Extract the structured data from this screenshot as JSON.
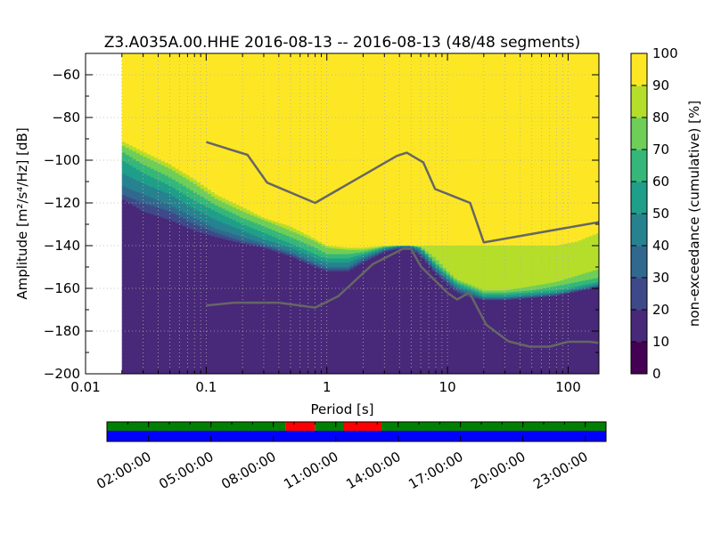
{
  "chart_data": {
    "type": "heatmap",
    "title": "Z3.A035A.00.HHE   2016-08-13 -- 2016-08-13  (48/48 segments)",
    "xlabel": "Period [s]",
    "ylabel": "Amplitude [m²/s⁴/Hz] [dB]",
    "x_scale": "log",
    "xlim": [
      0.01,
      180
    ],
    "ylim": [
      -200,
      -50
    ],
    "xticks": [
      {
        "value": 0.01,
        "label": "0.01"
      },
      {
        "value": 0.1,
        "label": "0.1"
      },
      {
        "value": 1,
        "label": "1"
      },
      {
        "value": 10,
        "label": "10"
      },
      {
        "value": 100,
        "label": "100"
      }
    ],
    "yticks": [
      -60,
      -80,
      -100,
      -120,
      -140,
      -160,
      -180,
      -200
    ],
    "grid": true,
    "data_x_start": 0.02,
    "colorbar": {
      "label": "non-exceedance (cumulative) [%]",
      "ticks": [
        0,
        10,
        20,
        30,
        40,
        50,
        60,
        70,
        80,
        90,
        100
      ],
      "colormap": "viridis"
    },
    "psd_boundaries": {
      "columns": [
        {
          "x": 0.02,
          "b": [
            -119,
            -118,
            -116,
            -112,
            -106,
            -100,
            -96,
            -93,
            -91
          ]
        },
        {
          "x": 0.03,
          "b": [
            -127,
            -124,
            -120,
            -116,
            -111,
            -106,
            -102,
            -98,
            -96
          ]
        },
        {
          "x": 0.05,
          "b": [
            -131,
            -128,
            -124,
            -121,
            -116,
            -112,
            -108,
            -104,
            -102
          ]
        },
        {
          "x": 0.08,
          "b": [
            -135,
            -133,
            -130,
            -127,
            -123,
            -119,
            -115,
            -111,
            -109
          ]
        },
        {
          "x": 0.12,
          "b": [
            -138,
            -136,
            -134,
            -132,
            -128,
            -124,
            -121,
            -118,
            -116
          ]
        },
        {
          "x": 0.2,
          "b": [
            -140,
            -139,
            -138,
            -136,
            -133,
            -130,
            -127,
            -124,
            -122
          ]
        },
        {
          "x": 0.3,
          "b": [
            -142,
            -141,
            -140,
            -139,
            -137,
            -134,
            -131,
            -128,
            -127
          ]
        },
        {
          "x": 0.5,
          "b": [
            -146,
            -145,
            -144,
            -143,
            -141,
            -139,
            -136,
            -133,
            -131
          ]
        },
        {
          "x": 0.8,
          "b": [
            -151,
            -150,
            -149,
            -148,
            -146,
            -144,
            -141,
            -138,
            -137
          ]
        },
        {
          "x": 1.0,
          "b": [
            -153,
            -152,
            -151,
            -150,
            -148,
            -146,
            -144,
            -141,
            -140
          ]
        },
        {
          "x": 1.5,
          "b": [
            -153,
            -152,
            -151,
            -150,
            -148,
            -146,
            -144,
            -142,
            -141
          ]
        },
        {
          "x": 2.0,
          "b": [
            -149,
            -148,
            -147,
            -146,
            -145,
            -144,
            -143,
            -142,
            -141
          ]
        },
        {
          "x": 3.0,
          "b": [
            -144,
            -143,
            -142.5,
            -142,
            -141.5,
            -141,
            -140.5,
            -140.5,
            -140
          ]
        },
        {
          "x": 4.0,
          "b": [
            -142,
            -141.5,
            -141,
            -140.5,
            -140.3,
            -140,
            -140,
            -140,
            -140
          ]
        },
        {
          "x": 5.0,
          "b": [
            -142,
            -141.5,
            -141,
            -140.5,
            -140.3,
            -140,
            -140,
            -140,
            -140
          ]
        },
        {
          "x": 6.0,
          "b": [
            -146,
            -145,
            -144,
            -143,
            -142,
            -141,
            -141,
            -140.5,
            -140
          ]
        },
        {
          "x": 8.0,
          "b": [
            -154,
            -153,
            -152,
            -151,
            -150,
            -149,
            -148,
            -146,
            -140
          ]
        },
        {
          "x": 10.0,
          "b": [
            -159,
            -158,
            -157,
            -156,
            -155,
            -154,
            -153,
            -152,
            -140
          ]
        },
        {
          "x": 12.0,
          "b": [
            -163,
            -162,
            -161,
            -160,
            -159,
            -158,
            -157,
            -156,
            -140
          ]
        },
        {
          "x": 15.0,
          "b": [
            -165,
            -164,
            -163,
            -162,
            -161,
            -160,
            -159,
            -158,
            -140
          ]
        },
        {
          "x": 20.0,
          "b": [
            -166,
            -165.5,
            -165,
            -164.5,
            -164,
            -163,
            -162,
            -161,
            -140
          ]
        },
        {
          "x": 30.0,
          "b": [
            -166,
            -165.5,
            -165,
            -164.5,
            -164,
            -163,
            -162,
            -161,
            -140
          ]
        },
        {
          "x": 50.0,
          "b": [
            -165,
            -164.5,
            -164,
            -163.5,
            -163,
            -162,
            -161,
            -159,
            -140
          ]
        },
        {
          "x": 80.0,
          "b": [
            -164,
            -163.5,
            -163,
            -162.5,
            -162,
            -161,
            -159,
            -157,
            -140
          ]
        },
        {
          "x": 120.0,
          "b": [
            -162,
            -161.5,
            -161,
            -160.5,
            -160,
            -159,
            -157,
            -154,
            -138
          ]
        },
        {
          "x": 180.0,
          "b": [
            -160,
            -159.5,
            -159,
            -158.5,
            -158,
            -157,
            -155,
            -151,
            -134
          ]
        }
      ]
    },
    "series": [
      {
        "values": [
          {
            "x": 0.1,
            "y": -91.5
          },
          {
            "x": 0.22,
            "y": -97.5
          },
          {
            "x": 0.32,
            "y": -110.5
          },
          {
            "x": 0.8,
            "y": -120
          },
          {
            "x": 3.8,
            "y": -98
          },
          {
            "x": 4.6,
            "y": -96.5
          },
          {
            "x": 6.3,
            "y": -101
          },
          {
            "x": 7.9,
            "y": -113.5
          },
          {
            "x": 15.4,
            "y": -120
          },
          {
            "x": 20.0,
            "y": -138.5
          },
          {
            "x": 180.0,
            "y": -129
          }
        ]
      },
      {
        "values": [
          {
            "x": 0.1,
            "y": -168
          },
          {
            "x": 0.17,
            "y": -166.7
          },
          {
            "x": 0.4,
            "y": -166.7
          },
          {
            "x": 0.8,
            "y": -169
          },
          {
            "x": 1.24,
            "y": -163.7
          },
          {
            "x": 2.4,
            "y": -148.7
          },
          {
            "x": 4.3,
            "y": -141.4
          },
          {
            "x": 5.0,
            "y": -141.5
          },
          {
            "x": 6.0,
            "y": -149.7
          },
          {
            "x": 10.0,
            "y": -162.1
          },
          {
            "x": 12.0,
            "y": -165.2
          },
          {
            "x": 15.2,
            "y": -162
          },
          {
            "x": 21.0,
            "y": -177.1
          },
          {
            "x": 32.0,
            "y": -184.8
          },
          {
            "x": 48.0,
            "y": -187.3
          },
          {
            "x": 70.0,
            "y": -187.3
          },
          {
            "x": 100.0,
            "y": -185
          },
          {
            "x": 150.0,
            "y": -185
          },
          {
            "x": 180.0,
            "y": -185.5
          }
        ]
      }
    ],
    "coverage": {
      "time_ticks": [
        "02:00:00",
        "05:00:00",
        "08:00:00",
        "11:00:00",
        "14:00:00",
        "17:00:00",
        "20:00:00",
        "23:00:00"
      ],
      "top_strip_segments": [
        {
          "state": "used",
          "start_hour": 0,
          "end_hour": 8.6
        },
        {
          "state": "gap",
          "start_hour": 8.6,
          "end_hour": 10.0
        },
        {
          "state": "used",
          "start_hour": 10.0,
          "end_hour": 11.4
        },
        {
          "state": "gap",
          "start_hour": 11.4,
          "end_hour": 13.2
        },
        {
          "state": "used",
          "start_hour": 13.2,
          "end_hour": 24.0
        }
      ],
      "bottom_strip": "available",
      "start_hour": 0,
      "end_hour": 24
    }
  },
  "colors": {
    "line": "#666666",
    "coverage_used": "#008000",
    "coverage_gap": "#ff0000",
    "coverage_available": "#0000ff",
    "grid": "#b0b0b0",
    "viridis": [
      "#440154",
      "#482878",
      "#3e4989",
      "#31688e",
      "#26828e",
      "#1f9e89",
      "#35b779",
      "#6ece58",
      "#b5de2b",
      "#fde725"
    ]
  }
}
